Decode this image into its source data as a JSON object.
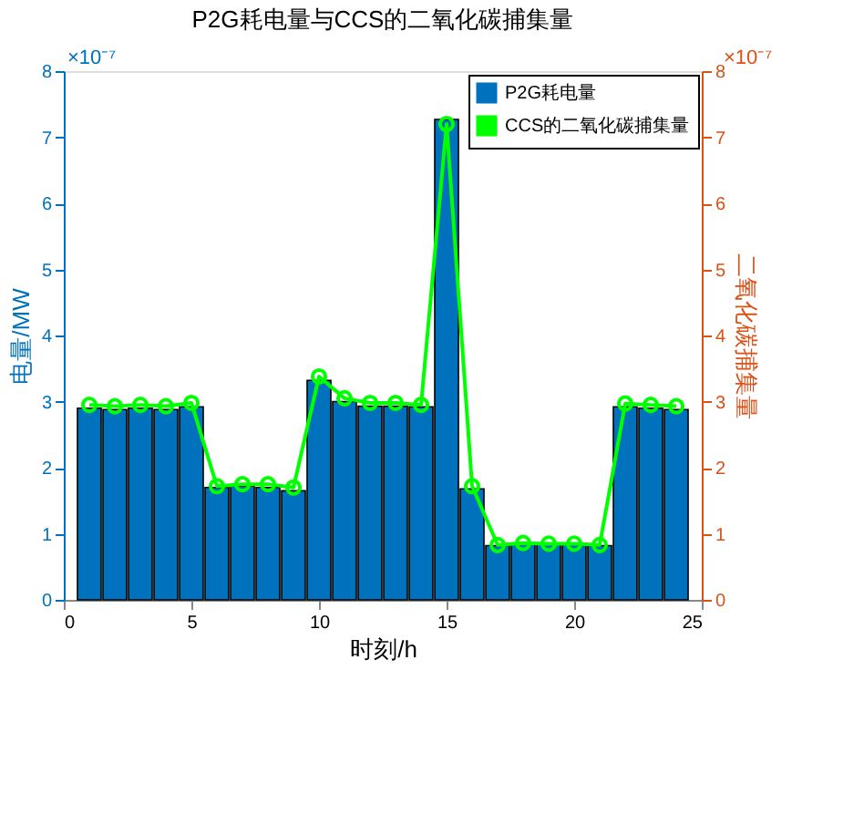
{
  "chart_data": {
    "type": "bar",
    "title": "P2G耗电量与CCS的二氧化碳捕集量",
    "xlabel": "时刻/h",
    "ylabel": "电量/MW",
    "y2label": "二氧化碳捕集量",
    "x": [
      1,
      2,
      3,
      4,
      5,
      6,
      7,
      8,
      9,
      10,
      11,
      12,
      13,
      14,
      15,
      16,
      17,
      18,
      19,
      20,
      21,
      22,
      23,
      24
    ],
    "series": [
      {
        "name": "P2G耗电量",
        "color": "#0072bd",
        "values": [
          2.9,
          2.88,
          2.9,
          2.88,
          2.92,
          1.7,
          1.72,
          1.7,
          1.65,
          3.32,
          3.0,
          2.93,
          2.93,
          2.92,
          7.27,
          1.68,
          0.82,
          0.85,
          0.85,
          0.85,
          0.82,
          2.92,
          2.9,
          2.88
        ]
      },
      {
        "name": "CCS的二氧化碳捕集量",
        "type": "line",
        "axis": "y2",
        "color": "#00ff00",
        "marker": "circle",
        "values": [
          2.95,
          2.93,
          2.95,
          2.93,
          2.98,
          1.72,
          1.75,
          1.75,
          1.7,
          3.38,
          3.05,
          2.98,
          2.98,
          2.95,
          7.2,
          1.72,
          0.83,
          0.86,
          0.85,
          0.85,
          0.83,
          2.97,
          2.95,
          2.93
        ]
      }
    ],
    "xlim": [
      0,
      25
    ],
    "xticks": [
      0,
      5,
      10,
      15,
      20,
      25
    ],
    "ylim": [
      0,
      8
    ],
    "yticks": [
      0,
      1,
      2,
      3,
      4,
      5,
      6,
      7,
      8
    ],
    "y2lim": [
      0,
      8
    ],
    "y2ticks": [
      0,
      1,
      2,
      3,
      4,
      5,
      6,
      7,
      8
    ],
    "annotations": [
      "×10⁻⁷",
      "×10⁻⁷"
    ],
    "legend": "top right",
    "grid": false
  }
}
